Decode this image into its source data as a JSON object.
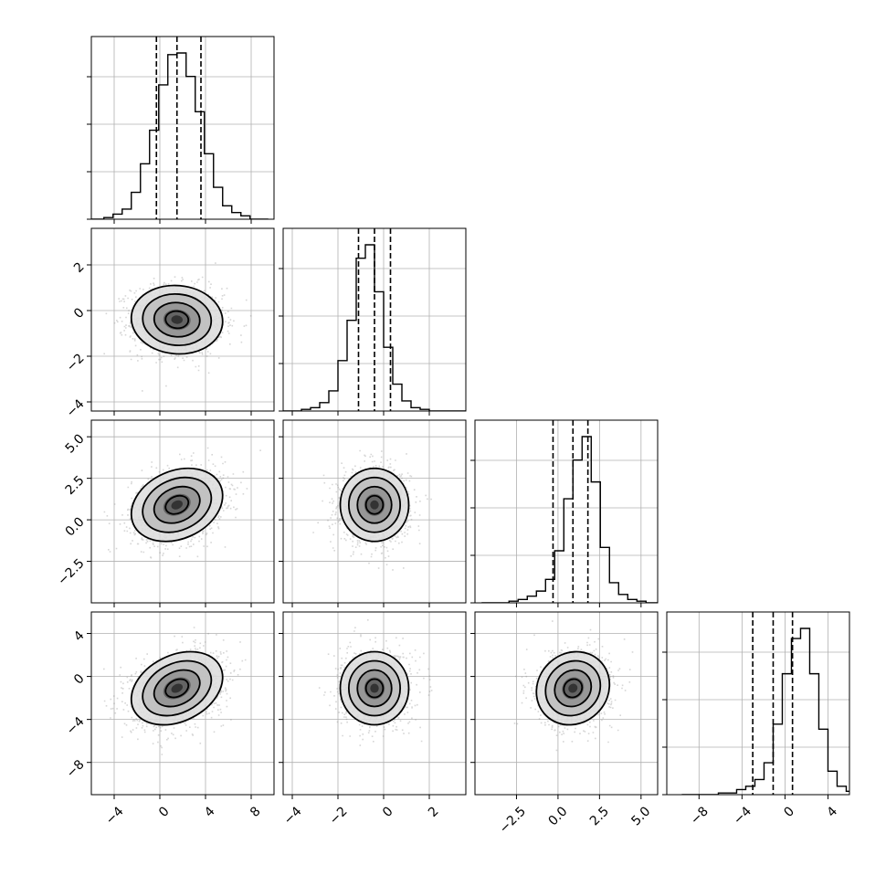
{
  "chart_data": {
    "type": "corner",
    "title": "",
    "grid": true,
    "parameters": [
      {
        "index": 0,
        "mean": 1.5,
        "sd": 2.0,
        "range": [
          -6,
          10
        ],
        "ticks": [
          -4,
          0,
          4,
          8
        ],
        "tick_labels": [
          "−4",
          "0",
          "4",
          "8"
        ],
        "quantiles": [
          -0.3,
          1.5,
          3.6
        ],
        "hist_bin_width": 0.8,
        "hist_counts": [
          0,
          0,
          1,
          3,
          6,
          16,
          33,
          53,
          80,
          98,
          99,
          85,
          64,
          39,
          19,
          8,
          4,
          2,
          0,
          0
        ]
      },
      {
        "index": 1,
        "mean": -0.4,
        "sd": 0.75,
        "range": [
          -4.4,
          3.6
        ],
        "ticks": [
          -4,
          -2,
          0,
          2
        ],
        "tick_labels": [
          "−4",
          "−2",
          "0",
          "2"
        ],
        "quantiles": [
          -1.1,
          -0.4,
          0.3
        ],
        "hist_bin_width": 0.4,
        "hist_counts": [
          0,
          0,
          1,
          2,
          5,
          12,
          30,
          54,
          91,
          99,
          71,
          38,
          16,
          6,
          2,
          1,
          0,
          0,
          0,
          0
        ]
      },
      {
        "index": 2,
        "mean": 0.9,
        "sd": 1.1,
        "range": [
          -5.0,
          6.0
        ],
        "ticks": [
          -2.5,
          0.0,
          2.5,
          5.0
        ],
        "tick_labels": [
          "−2.5",
          "0.0",
          "2.5",
          "5.0"
        ],
        "quantiles": [
          -0.3,
          0.9,
          1.8
        ],
        "hist_bin_width": 0.55,
        "hist_counts": [
          0,
          0,
          0,
          1,
          2,
          4,
          7,
          14,
          31,
          62,
          85,
          99,
          72,
          33,
          12,
          5,
          2,
          1,
          0,
          0
        ]
      },
      {
        "index": 3,
        "mean": -1.1,
        "sd": 1.7,
        "range": [
          -11,
          6
        ],
        "ticks": [
          -8,
          -4,
          0,
          4
        ],
        "tick_labels": [
          "−8",
          "−4",
          "0",
          "4"
        ],
        "quantiles": [
          -3.0,
          -1.1,
          0.7
        ],
        "hist_bin_width": 0.85,
        "hist_counts": [
          0,
          0,
          0,
          0,
          1,
          1,
          3,
          5,
          9,
          19,
          42,
          72,
          93,
          99,
          72,
          39,
          14,
          5,
          2,
          1
        ]
      }
    ],
    "pairs": [
      {
        "row": 1,
        "col": 0,
        "x_mean": 1.5,
        "y_mean": -0.4,
        "x_sd": 2.0,
        "y_sd": 0.75,
        "correlation": -0.05
      },
      {
        "row": 2,
        "col": 0,
        "x_mean": 1.5,
        "y_mean": 0.9,
        "x_sd": 2.0,
        "y_sd": 1.1,
        "correlation": 0.25
      },
      {
        "row": 2,
        "col": 1,
        "x_mean": -0.4,
        "y_mean": 0.9,
        "x_sd": 0.75,
        "y_sd": 1.1,
        "correlation": 0.0
      },
      {
        "row": 3,
        "col": 0,
        "x_mean": 1.5,
        "y_mean": -1.1,
        "x_sd": 2.0,
        "y_sd": 1.7,
        "correlation": 0.3
      },
      {
        "row": 3,
        "col": 1,
        "x_mean": -0.4,
        "y_mean": -1.1,
        "x_sd": 0.75,
        "y_sd": 1.7,
        "correlation": 0.0
      },
      {
        "row": 3,
        "col": 2,
        "x_mean": 0.9,
        "y_mean": -1.1,
        "x_sd": 1.1,
        "y_sd": 1.7,
        "correlation": 0.1
      }
    ],
    "contour_levels_sigma": [
      0.5,
      1.0,
      1.5,
      2.0
    ],
    "colors": {
      "contour": "#000000",
      "points": "#8a8a8a",
      "grid": "#b0b0b0"
    }
  }
}
